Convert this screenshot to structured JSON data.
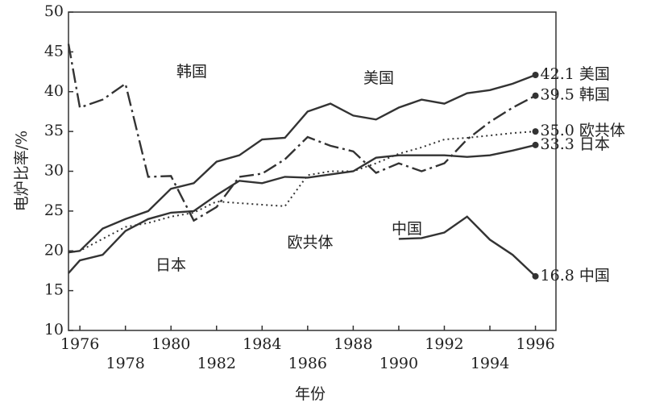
{
  "chart_data": {
    "type": "line",
    "x": [
      1975.5,
      1976,
      1977,
      1978,
      1979,
      1980,
      1981,
      1982,
      1983,
      1984,
      1985,
      1986,
      1987,
      1988,
      1989,
      1990,
      1991,
      1992,
      1993,
      1994,
      1995,
      1996
    ],
    "xlim": [
      1975.5,
      1996.9
    ],
    "xticks": [
      1976,
      1978,
      1980,
      1982,
      1984,
      1986,
      1988,
      1990,
      1992,
      1994,
      1996
    ],
    "ylim": [
      10,
      50
    ],
    "yticks": [
      10,
      15,
      20,
      25,
      30,
      35,
      40,
      45,
      50
    ],
    "xlabel": "年份",
    "ylabel": "电炉比率/%",
    "series": [
      {
        "name": "美国",
        "color": "#333333",
        "style": "solid",
        "values": [
          19.8,
          20,
          22.8,
          24,
          25,
          27.8,
          28.5,
          31.2,
          32,
          34,
          34.2,
          37.5,
          38.5,
          37,
          36.5,
          38,
          39,
          38.5,
          39.8,
          40.2,
          41,
          42.1
        ],
        "value_labels": [
          null,
          null,
          null,
          null,
          null,
          null,
          null,
          null,
          null,
          null,
          null,
          null,
          null,
          null,
          null,
          null,
          null,
          null,
          null,
          null,
          null,
          "42.1"
        ]
      },
      {
        "name": "韩国",
        "color": "#333333",
        "style": "dashdot",
        "values": [
          46,
          38,
          39,
          41,
          29.3,
          29.4,
          23.8,
          25.5,
          29.3,
          29.7,
          31.5,
          34.3,
          33.2,
          32.5,
          29.8,
          31,
          30,
          31,
          34,
          36.2,
          38,
          39.5
        ],
        "value_labels": [
          null,
          null,
          null,
          null,
          null,
          null,
          null,
          null,
          null,
          null,
          null,
          null,
          null,
          null,
          null,
          null,
          null,
          null,
          null,
          null,
          null,
          "39.5"
        ]
      },
      {
        "name": "欧共体",
        "color": "#333333",
        "style": "dotted",
        "values": [
          19.8,
          20,
          21.5,
          23,
          23.5,
          24.3,
          24.8,
          26.2,
          26,
          25.8,
          25.6,
          29.5,
          30,
          30,
          31,
          32.2,
          33,
          34,
          34.2,
          34.5,
          34.8,
          35
        ],
        "value_labels": [
          null,
          null,
          null,
          null,
          null,
          null,
          null,
          null,
          null,
          null,
          null,
          null,
          null,
          null,
          null,
          null,
          null,
          null,
          null,
          null,
          null,
          "35.0"
        ]
      },
      {
        "name": "日本",
        "color": "#333333",
        "style": "solid",
        "values": [
          17.2,
          18.8,
          19.5,
          22.5,
          24,
          24.8,
          25,
          27,
          28.8,
          28.5,
          29.3,
          29.2,
          29.6,
          30,
          31.7,
          32,
          32,
          32,
          31.8,
          32,
          32.6,
          33.3
        ],
        "value_labels": [
          null,
          null,
          null,
          null,
          null,
          null,
          null,
          null,
          null,
          null,
          null,
          null,
          null,
          null,
          null,
          null,
          null,
          null,
          null,
          null,
          null,
          "33.3"
        ]
      },
      {
        "name": "中国",
        "color": "#333333",
        "style": "solid",
        "values": [
          null,
          null,
          null,
          null,
          null,
          null,
          null,
          null,
          null,
          null,
          null,
          null,
          null,
          null,
          null,
          21.5,
          21.6,
          22.3,
          24.3,
          21.4,
          19.5,
          16.8
        ],
        "value_labels": [
          null,
          null,
          null,
          null,
          null,
          null,
          null,
          null,
          null,
          null,
          null,
          null,
          null,
          null,
          null,
          null,
          null,
          null,
          null,
          null,
          null,
          "16.8"
        ]
      }
    ]
  }
}
